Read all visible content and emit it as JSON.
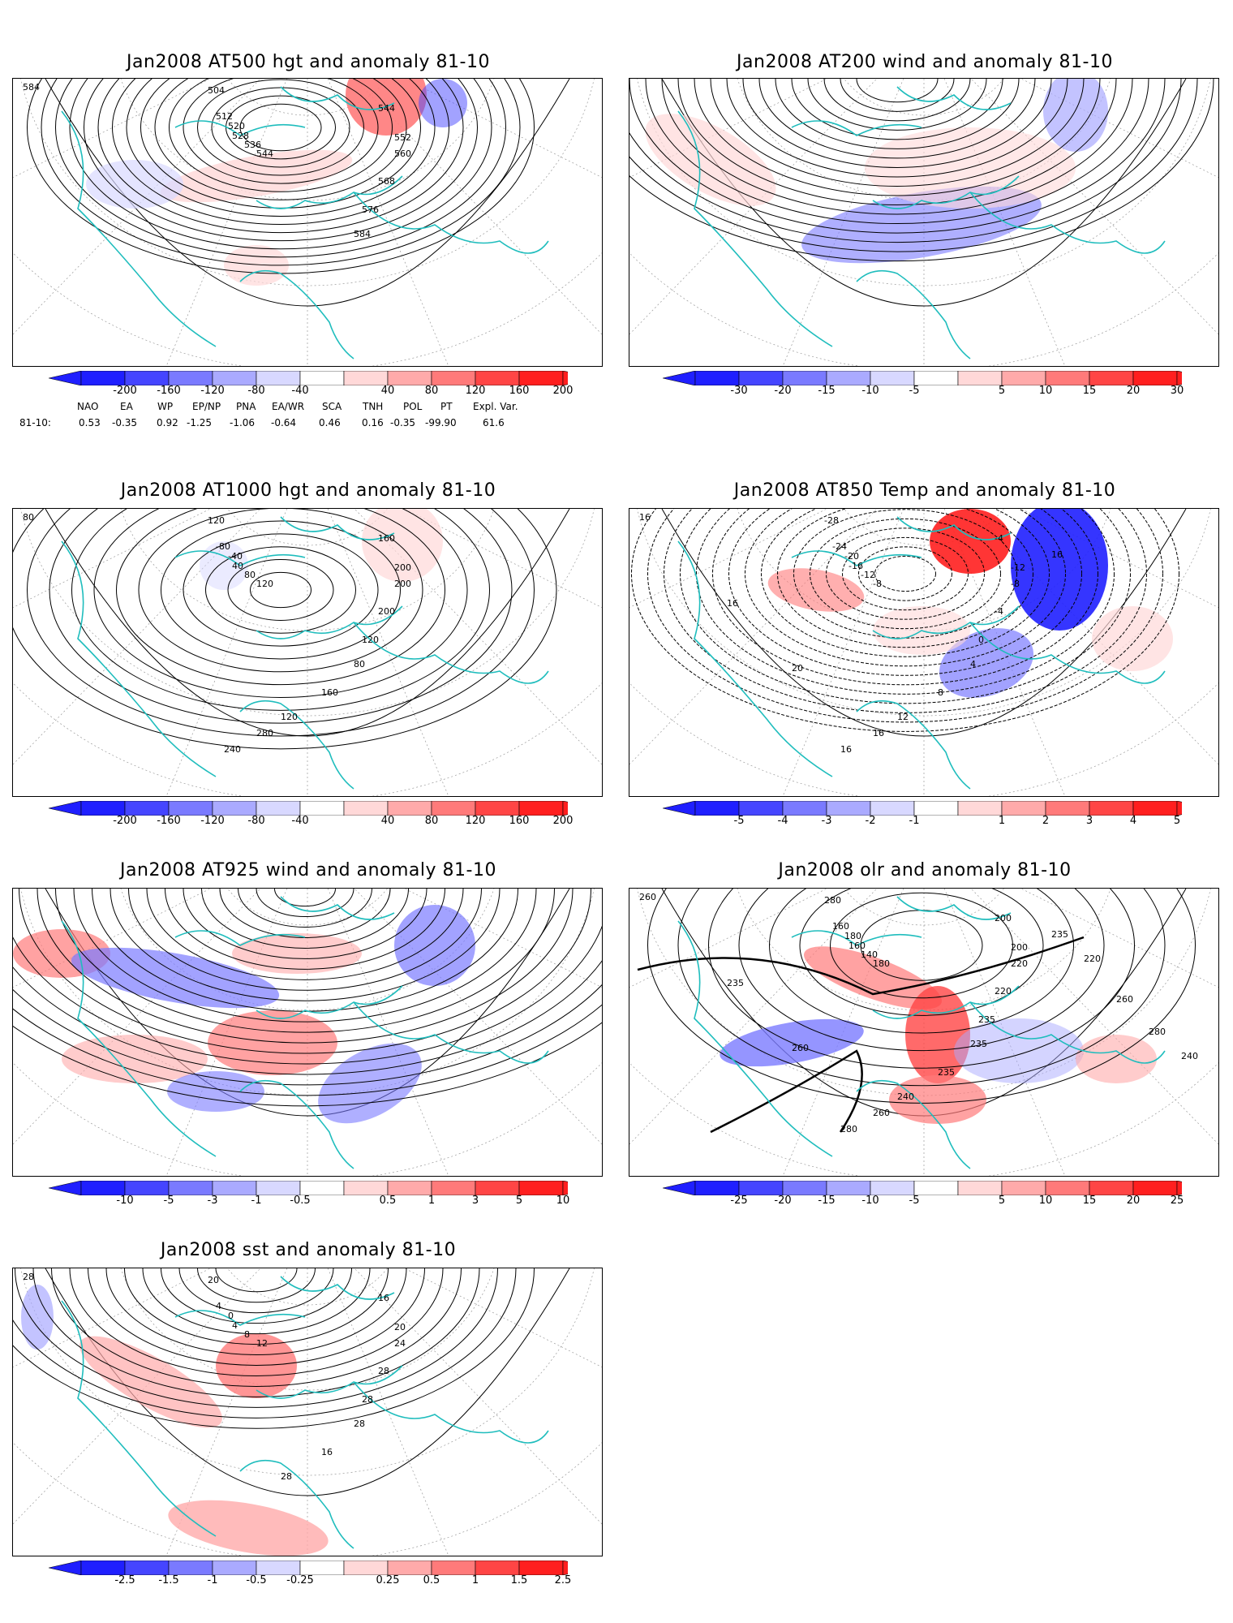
{
  "panels": [
    {
      "id": "p1",
      "title": "Jan2008 AT500 hgt and anomaly 81-10",
      "colorbar": {
        "ticks": [
          "-200",
          "-160",
          "-120",
          "-80",
          "-40",
          "40",
          "80",
          "120",
          "160",
          "200"
        ]
      },
      "contour_labels": [
        "584",
        "504",
        "512",
        "520",
        "528",
        "536",
        "544",
        "544",
        "552",
        "560",
        "568",
        "576",
        "584"
      ]
    },
    {
      "id": "p2",
      "title": "Jan2008 AT200 wind and anomaly 81-10",
      "colorbar": {
        "ticks": [
          "-30",
          "-20",
          "-15",
          "-10",
          "-5",
          "5",
          "10",
          "15",
          "20",
          "30"
        ]
      },
      "contour_labels": []
    },
    {
      "id": "p3",
      "title": "Jan2008 AT1000 hgt and anomaly 81-10",
      "colorbar": {
        "ticks": [
          "-200",
          "-160",
          "-120",
          "-80",
          "-40",
          "40",
          "80",
          "120",
          "160",
          "200"
        ]
      },
      "contour_labels": [
        "80",
        "120",
        "-80",
        "-40",
        "40",
        "80",
        "120",
        "160",
        "200",
        "200",
        "200",
        "120",
        "80",
        "160",
        "120",
        "280",
        "240"
      ]
    },
    {
      "id": "p4",
      "title": "Jan2008 AT850 Temp and anomaly 81-10",
      "colorbar": {
        "ticks": [
          "-5",
          "-4",
          "-3",
          "-2",
          "-1",
          "1",
          "2",
          "3",
          "4",
          "5"
        ]
      },
      "contour_labels": [
        "16",
        "-28",
        "-24",
        "-20",
        "-16",
        "-12",
        "-8",
        "-4",
        "-12",
        "-8",
        "-4",
        "0",
        "4",
        "8",
        "12",
        "16",
        "16",
        "20",
        "16",
        "16"
      ]
    },
    {
      "id": "p5",
      "title": "Jan2008 AT925 wind and anomaly 81-10",
      "colorbar": {
        "ticks": [
          "-10",
          "-5",
          "-3",
          "-1",
          "-0.5",
          "0.5",
          "1",
          "3",
          "5",
          "10"
        ]
      },
      "contour_labels": []
    },
    {
      "id": "p6",
      "title": "Jan2008 olr and anomaly 81-10",
      "colorbar": {
        "ticks": [
          "-25",
          "-20",
          "-15",
          "-10",
          "-5",
          "5",
          "10",
          "15",
          "20",
          "25"
        ]
      },
      "contour_labels": [
        "260",
        "280",
        "160",
        "180",
        "160",
        "140",
        "180",
        "200",
        "200",
        "220",
        "220",
        "235",
        "235",
        "235",
        "240",
        "260",
        "280",
        "260",
        "235",
        "235",
        "220",
        "260",
        "280",
        "240"
      ]
    },
    {
      "id": "p7",
      "title": "Jan2008 sst and anomaly 81-10",
      "colorbar": {
        "ticks": [
          "-2.5",
          "-1.5",
          "-1",
          "-0.5",
          "-0.25",
          "0.25",
          "0.5",
          "1",
          "1.5",
          "2.5"
        ]
      },
      "contour_labels": [
        "28",
        "20",
        "4",
        "0",
        "4",
        "8",
        "12",
        "16",
        "20",
        "24",
        "28",
        "28",
        "28",
        "16",
        "28"
      ]
    }
  ],
  "teleconnections": {
    "header": [
      "NAO",
      "EA",
      "WP",
      "EP/NP",
      "PNA",
      "EA/WR",
      "SCA",
      "TNH",
      "POL",
      "PT",
      "Expl. Var."
    ],
    "row_label": "81-10:",
    "values": [
      "0.53",
      "-0.35",
      "0.92",
      "-1.25",
      "-1.06",
      "-0.64",
      "0.46",
      "0.16",
      "-0.35",
      "-99.90",
      "61.6"
    ]
  },
  "colors": {
    "blue_scale": [
      "#1f1fff",
      "#4545ff",
      "#7a7aff",
      "#aaaaff",
      "#d8d8ff"
    ],
    "red_scale": [
      "#ffd8d8",
      "#ffaaaa",
      "#ff7a7a",
      "#ff4545",
      "#ff1f1f"
    ],
    "coastline": "#1fbdbd",
    "contour": "#000000"
  }
}
